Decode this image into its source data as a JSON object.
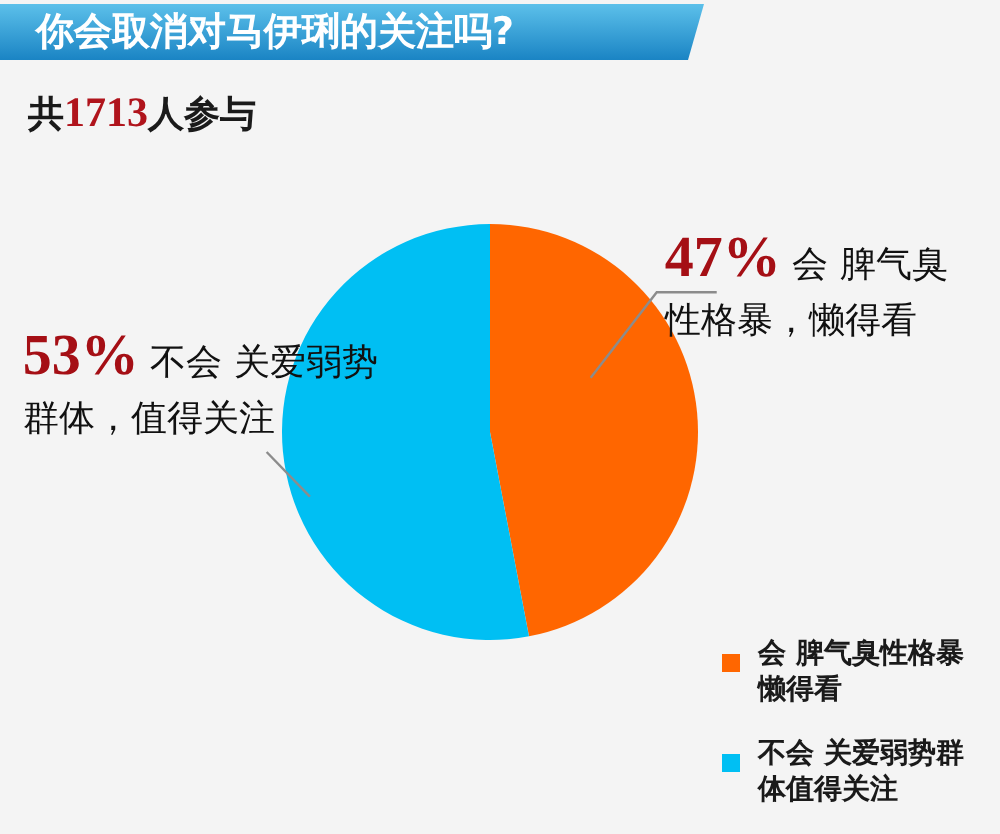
{
  "chart_data": {
    "type": "pie",
    "title": "你会取消对马伊琍的关注吗?",
    "subtitle": "共1713人参与",
    "categories": [
      "会 脾气臭性格暴懒得看",
      "不会 关爱弱势群体值得关注"
    ],
    "values": [
      47,
      53
    ],
    "colors": [
      "#ff6600",
      "#00bff3"
    ],
    "value_labels": [
      "**47%** 会 脾气臭性格暴，懒得看",
      "**53%** 不会 关爱弱势群体，值得关注"
    ],
    "legend": "bottom right"
  }
}
